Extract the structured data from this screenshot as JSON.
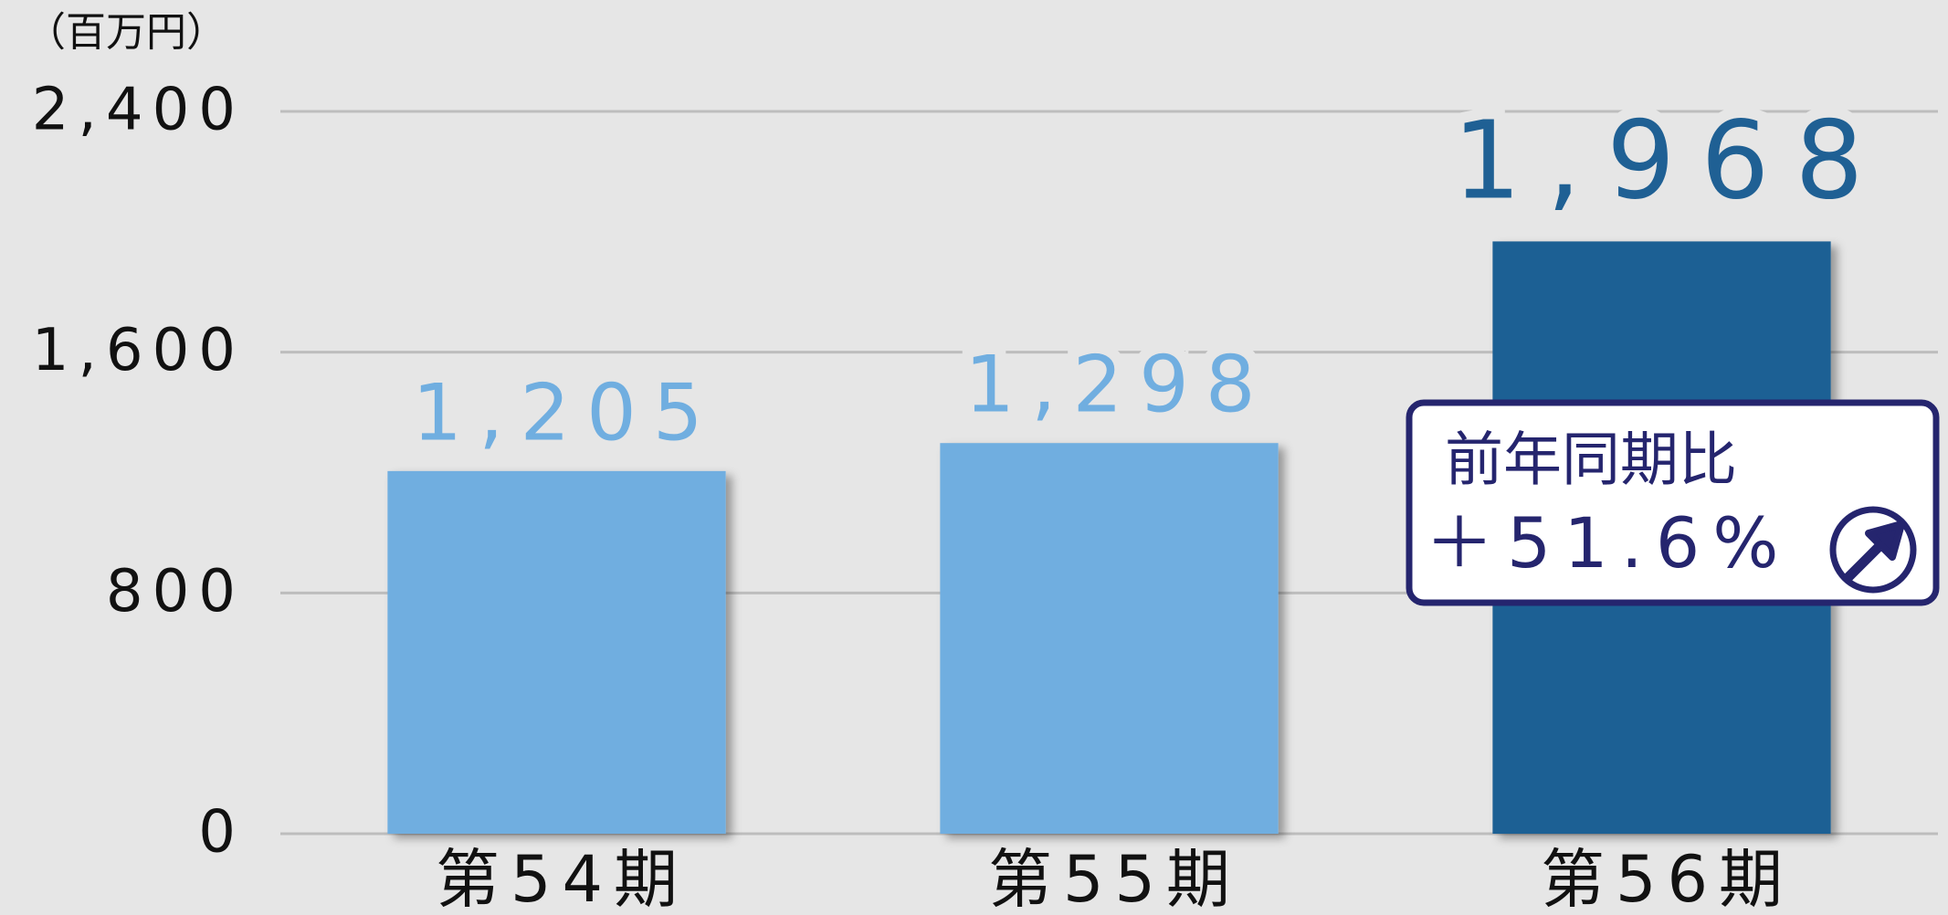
{
  "chart_data": {
    "type": "bar",
    "unit_label": "（百万円）",
    "categories": [
      "第54期",
      "第55期",
      "第56期"
    ],
    "values": [
      1205,
      1298,
      1968
    ],
    "value_labels": [
      "1,205",
      "1,298",
      "1,968"
    ],
    "colors": [
      "#70aee0",
      "#70aee0",
      "#1f6094"
    ],
    "ylim": [
      0,
      2400
    ],
    "yticks": [
      0,
      800,
      {
        "value": 1600,
        "label": "1,600"
      },
      {
        "value": 2400,
        "label": "2,400"
      }
    ],
    "grid": true,
    "annotation": {
      "title": "前年同期比",
      "text": "＋51.6%"
    }
  }
}
